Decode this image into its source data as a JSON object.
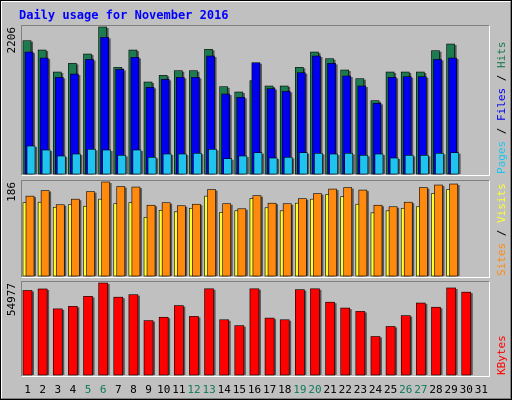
{
  "chart_data": {
    "type": "bar",
    "title": "Daily usage for November 2016",
    "categories": [
      "1",
      "2",
      "3",
      "4",
      "5",
      "6",
      "7",
      "8",
      "9",
      "10",
      "11",
      "12",
      "13",
      "14",
      "15",
      "16",
      "17",
      "18",
      "19",
      "20",
      "21",
      "22",
      "23",
      "24",
      "25",
      "26",
      "27",
      "28",
      "29",
      "30",
      "31"
    ],
    "weekend_days": [
      "5",
      "6",
      "12",
      "13",
      "19",
      "20",
      "26",
      "27"
    ],
    "colors": {
      "hits": "#1d7b50",
      "files": "#0000ee",
      "pages": "#1ec4ef",
      "visits": "#ffff2e",
      "sites": "#ff8a0e",
      "kbytes": "#ff0000",
      "weekday_label": "#000000",
      "weekend_label": "#0f7a5a",
      "title": "#0000ff",
      "panel_bg": "#c0c0c0"
    },
    "panels": [
      {
        "id": "requests",
        "ymax_label": "2206",
        "ymax": 2206,
        "side_labels": [
          {
            "text": "Pages",
            "color": "#1ec4ef"
          },
          {
            "text": " / ",
            "color": "#000000"
          },
          {
            "text": "Files",
            "color": "#0000ee"
          },
          {
            "text": " / ",
            "color": "#000000"
          },
          {
            "text": "Hits",
            "color": "#1d7b50"
          }
        ],
        "series": [
          {
            "name": "Hits",
            "color": "#1d7b50",
            "values": [
              2000,
              1860,
              1530,
              1660,
              1800,
              2206,
              1600,
              1860,
              1380,
              1480,
              1550,
              1550,
              1870,
              1310,
              1230,
              1400,
              1320,
              1320,
              1600,
              1830,
              1730,
              1560,
              1430,
              1100,
              1530,
              1530,
              1530,
              1850,
              1950,
              0,
              0
            ]
          },
          {
            "name": "Files",
            "color": "#0000ee",
            "values": [
              1830,
              1740,
              1450,
              1500,
              1720,
              2050,
              1570,
              1750,
              1300,
              1420,
              1450,
              1450,
              1770,
              1200,
              1150,
              1670,
              1280,
              1240,
              1520,
              1770,
              1660,
              1470,
              1320,
              1060,
              1450,
              1460,
              1460,
              1720,
              1740,
              0,
              0
            ]
          },
          {
            "name": "Pages",
            "color": "#1ec4ef",
            "values": [
              420,
              360,
              270,
              300,
              370,
              360,
              280,
              360,
              250,
              300,
              300,
              310,
              370,
              230,
              270,
              320,
              240,
              250,
              320,
              310,
              300,
              310,
              280,
              300,
              240,
              280,
              280,
              310,
              320,
              0,
              0
            ]
          }
        ]
      },
      {
        "id": "visitors",
        "ymax_label": "186",
        "ymax": 186,
        "side_labels": [
          {
            "text": "Sites",
            "color": "#ff8a0e"
          },
          {
            "text": " / ",
            "color": "#000000"
          },
          {
            "text": "Visits",
            "color": "#ffff2e"
          }
        ],
        "series": [
          {
            "name": "Visits",
            "color": "#ffff2e",
            "values": [
              145,
              146,
              136,
              141,
              138,
              152,
              143,
              145,
              116,
              130,
              127,
              134,
              158,
              126,
              129,
              153,
              135,
              129,
              144,
              152,
              161,
              157,
              142,
              125,
              129,
              134,
              137,
              163,
              171,
              0,
              0
            ]
          },
          {
            "name": "Sites",
            "color": "#ff8a0e",
            "values": [
              158,
              169,
              141,
              152,
              167,
              186,
              177,
              176,
              140,
              145,
              139,
              142,
              171,
              143,
              133,
              159,
              144,
              143,
              153,
              163,
              172,
              175,
              170,
              140,
              137,
              146,
              175,
              180,
              182,
              0,
              0
            ]
          }
        ]
      },
      {
        "id": "kbytes",
        "ymax_label": "54977",
        "ymax": 54977,
        "side_labels": [
          {
            "text": "KBytes",
            "color": "#ff0000"
          }
        ],
        "series": [
          {
            "name": "KBytes",
            "color": "#ff0000",
            "values": [
              50500,
              51400,
              39500,
              41000,
              47000,
              54977,
              46500,
              48000,
              32500,
              34500,
              41500,
              35000,
              51500,
              33000,
              29500,
              51500,
              34000,
              33000,
              51000,
              51500,
              43500,
              40000,
              38000,
              23000,
              29000,
              35500,
              43000,
              40500,
              52000,
              49500,
              0
            ]
          }
        ]
      }
    ]
  }
}
